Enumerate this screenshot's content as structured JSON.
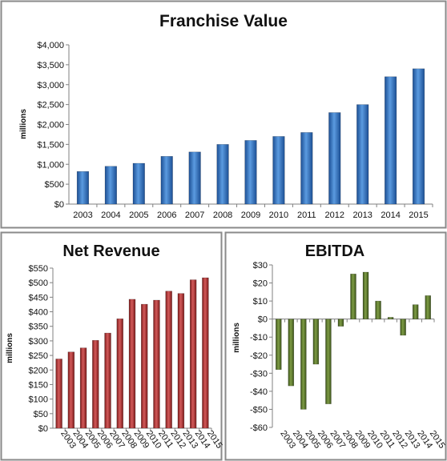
{
  "chart_data": [
    {
      "type": "bar",
      "title": "Franchise Value",
      "ylabel": "millions",
      "xlabel": "",
      "categories": [
        "2003",
        "2004",
        "2005",
        "2006",
        "2007",
        "2008",
        "2009",
        "2010",
        "2011",
        "2012",
        "2013",
        "2014",
        "2015"
      ],
      "values": [
        820,
        950,
        1025,
        1200,
        1310,
        1500,
        1600,
        1700,
        1800,
        2300,
        2500,
        3200,
        3400
      ],
      "ylim": [
        0,
        4000
      ],
      "yticks": [
        0,
        500,
        1000,
        1500,
        2000,
        2500,
        3000,
        3500,
        4000
      ],
      "ytick_labels": [
        "$0",
        "$500",
        "$1,000",
        "$1,500",
        "$2,000",
        "$2,500",
        "$3,000",
        "$3,500",
        "$4,000"
      ],
      "grid": false,
      "color": "#2e75c8"
    },
    {
      "type": "bar",
      "title": "Net Revenue",
      "ylabel": "millions",
      "xlabel": "",
      "categories": [
        "2003",
        "2004",
        "2005",
        "2006",
        "2007",
        "2008",
        "2009",
        "2010",
        "2011",
        "2012",
        "2013",
        "2014",
        "2015"
      ],
      "values": [
        238,
        262,
        276,
        302,
        327,
        376,
        443,
        426,
        440,
        471,
        463,
        510,
        517
      ],
      "ylim": [
        0,
        550
      ],
      "yticks": [
        0,
        50,
        100,
        150,
        200,
        250,
        300,
        350,
        400,
        450,
        500,
        550
      ],
      "ytick_labels": [
        "$0",
        "$50",
        "$100",
        "$150",
        "$200",
        "$250",
        "$300",
        "$350",
        "$400",
        "$450",
        "$500",
        "$550"
      ],
      "grid": false,
      "color": "#b03030"
    },
    {
      "type": "bar",
      "title": "EBITDA",
      "ylabel": "millions",
      "xlabel": "",
      "categories": [
        "2003",
        "2004",
        "2005",
        "2006",
        "2007",
        "2008",
        "2009",
        "2010",
        "2011",
        "2012",
        "2013",
        "2014",
        "2015"
      ],
      "values": [
        -28,
        -37,
        -50,
        -25,
        -47,
        -4,
        25,
        26,
        10,
        1,
        -9,
        8,
        13
      ],
      "ylim": [
        -60,
        30
      ],
      "yticks": [
        -60,
        -50,
        -40,
        -30,
        -20,
        -10,
        0,
        10,
        20,
        30
      ],
      "ytick_labels": [
        "-$60",
        "-$50",
        "-$40",
        "-$30",
        "-$20",
        "-$10",
        "$0",
        "$10",
        "$20",
        "$30"
      ],
      "grid": false,
      "color": "#5a7a2a"
    }
  ]
}
